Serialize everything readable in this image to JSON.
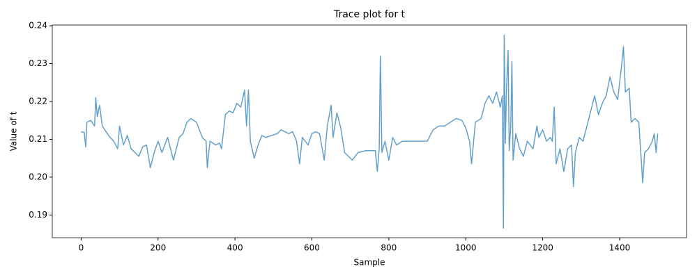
{
  "chart_data": {
    "type": "line",
    "title": "Trace plot for t",
    "x_label": "Sample",
    "y_label": "Value of t",
    "color": "#1f77b4",
    "xlim": [
      -75,
      1574
    ],
    "ylim": [
      0.184,
      0.2402
    ],
    "xticks": [
      0,
      200,
      400,
      600,
      800,
      1000,
      1200,
      1400
    ],
    "yticks": [
      0.19,
      {
        "value": 0.2,
        "label": "0.20"
      },
      0.21,
      0.22,
      0.23,
      0.24
    ],
    "x": [
      0,
      8,
      12,
      15,
      25,
      35,
      38,
      42,
      48,
      55,
      65,
      75,
      85,
      95,
      100,
      110,
      120,
      130,
      140,
      150,
      160,
      170,
      180,
      190,
      200,
      210,
      225,
      240,
      255,
      265,
      275,
      285,
      300,
      315,
      325,
      328,
      335,
      350,
      360,
      365,
      375,
      385,
      395,
      405,
      415,
      425,
      430,
      435,
      440,
      450,
      460,
      470,
      480,
      495,
      510,
      520,
      540,
      550,
      560,
      568,
      575,
      590,
      600,
      610,
      620,
      632,
      640,
      650,
      655,
      665,
      675,
      685,
      695,
      705,
      720,
      740,
      765,
      770,
      775,
      778,
      782,
      790,
      800,
      810,
      820,
      835,
      850,
      870,
      900,
      915,
      930,
      945,
      960,
      975,
      990,
      1000,
      1010,
      1015,
      1025,
      1040,
      1050,
      1060,
      1070,
      1080,
      1085,
      1090,
      1095,
      1098,
      1100,
      1103,
      1106,
      1110,
      1113,
      1117,
      1120,
      1123,
      1130,
      1140,
      1150,
      1160,
      1175,
      1185,
      1190,
      1200,
      1210,
      1220,
      1225,
      1230,
      1235,
      1245,
      1255,
      1265,
      1275,
      1280,
      1285,
      1295,
      1305,
      1315,
      1325,
      1335,
      1345,
      1355,
      1365,
      1375,
      1385,
      1395,
      1405,
      1410,
      1415,
      1425,
      1430,
      1440,
      1450,
      1460,
      1465,
      1475,
      1485,
      1490,
      1495,
      1499
    ],
    "values": [
      0.212,
      0.2118,
      0.208,
      0.2145,
      0.215,
      0.2135,
      0.221,
      0.216,
      0.219,
      0.2135,
      0.212,
      0.2105,
      0.2095,
      0.2075,
      0.2135,
      0.2085,
      0.211,
      0.2075,
      0.2065,
      0.2055,
      0.208,
      0.2085,
      0.2025,
      0.2065,
      0.2095,
      0.2065,
      0.2105,
      0.2045,
      0.2105,
      0.2115,
      0.2145,
      0.2155,
      0.2145,
      0.2105,
      0.2095,
      0.2025,
      0.2095,
      0.2085,
      0.209,
      0.2075,
      0.2165,
      0.2175,
      0.217,
      0.2195,
      0.2185,
      0.223,
      0.2135,
      0.223,
      0.2095,
      0.205,
      0.2085,
      0.211,
      0.2105,
      0.211,
      0.2115,
      0.2125,
      0.2115,
      0.212,
      0.2095,
      0.2035,
      0.2105,
      0.2085,
      0.2115,
      0.212,
      0.2115,
      0.2045,
      0.2135,
      0.219,
      0.2105,
      0.217,
      0.213,
      0.2065,
      0.2055,
      0.2045,
      0.2065,
      0.207,
      0.207,
      0.2015,
      0.2075,
      0.232,
      0.2065,
      0.2095,
      0.2045,
      0.2105,
      0.2085,
      0.2095,
      0.2095,
      0.2095,
      0.2095,
      0.2125,
      0.2135,
      0.2135,
      0.2145,
      0.2155,
      0.215,
      0.213,
      0.2095,
      0.2035,
      0.2145,
      0.2155,
      0.2195,
      0.2215,
      0.2195,
      0.2225,
      0.2205,
      0.2185,
      0.2215,
      0.1865,
      0.2375,
      0.209,
      0.2235,
      0.2335,
      0.207,
      0.2135,
      0.2305,
      0.2045,
      0.2115,
      0.2075,
      0.2055,
      0.2095,
      0.2075,
      0.2135,
      0.2105,
      0.2125,
      0.2095,
      0.2105,
      0.2095,
      0.2185,
      0.2035,
      0.2075,
      0.2015,
      0.2075,
      0.2085,
      0.1975,
      0.2065,
      0.2105,
      0.2095,
      0.2135,
      0.2175,
      0.2215,
      0.2165,
      0.2195,
      0.2215,
      0.2265,
      0.2225,
      0.2205,
      0.2295,
      0.2345,
      0.2225,
      0.2235,
      0.2145,
      0.2155,
      0.2145,
      0.1985,
      0.2065,
      0.2075,
      0.2095,
      0.2115,
      0.2065,
      0.2115
    ]
  }
}
